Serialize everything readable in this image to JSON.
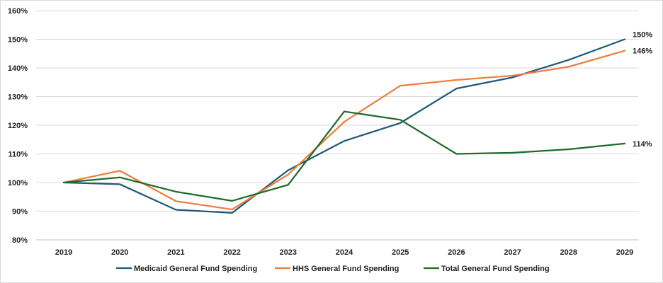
{
  "chart_data": {
    "type": "line",
    "title": "",
    "xlabel": "",
    "ylabel": "",
    "categories": [
      "2019",
      "2020",
      "2021",
      "2022",
      "2023",
      "2024",
      "2025",
      "2026",
      "2027",
      "2028",
      "2029"
    ],
    "ylim": [
      80,
      160
    ],
    "yticks": [
      80,
      90,
      100,
      110,
      120,
      130,
      140,
      150,
      160
    ],
    "ytick_labels": [
      "80%",
      "90%",
      "100%",
      "110%",
      "120%",
      "130%",
      "140%",
      "150%",
      "160%"
    ],
    "grid": true,
    "legend_position": "bottom",
    "series": [
      {
        "name": "Medicaid General Fund Spending",
        "color": "#1f5a7a",
        "values": [
          100,
          99.4,
          90.5,
          89.4,
          104.3,
          114.5,
          120.8,
          132.8,
          136.7,
          142.8,
          150
        ],
        "end_label": "150%"
      },
      {
        "name": "HHS General Fund Spending",
        "color": "#ef7d3c",
        "values": [
          100,
          104.1,
          93.5,
          90.6,
          102.8,
          121.2,
          133.8,
          135.8,
          137.3,
          140.4,
          146
        ],
        "end_label": "146%"
      },
      {
        "name": "Total General Fund Spending",
        "color": "#1e6b2a",
        "values": [
          100,
          101.8,
          96.8,
          93.6,
          99.2,
          124.8,
          121.9,
          110,
          110.4,
          111.6,
          113.6
        ],
        "end_label": "114%"
      }
    ]
  }
}
